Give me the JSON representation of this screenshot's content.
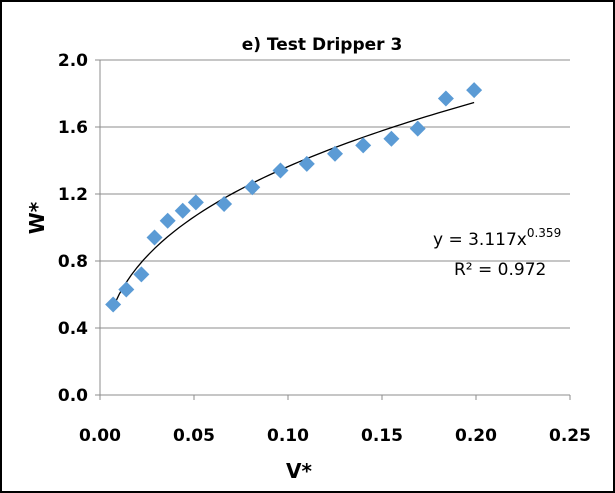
{
  "chart_data": {
    "type": "scatter",
    "title": "e) Test Dripper 3",
    "xlabel": "V*",
    "ylabel": "W*",
    "xlim": [
      0,
      0.25
    ],
    "ylim": [
      0,
      2.0
    ],
    "x_ticks": [
      "0.00",
      "0.05",
      "0.10",
      "0.15",
      "0.20",
      "0.25"
    ],
    "y_ticks": [
      "0.0",
      "0.4",
      "0.8",
      "1.2",
      "1.6",
      "2.0"
    ],
    "grid": "horizontal",
    "legend": "none",
    "marker": "diamond",
    "marker_color": "#5b9bd5",
    "trendline_color": "#000000",
    "series": [
      {
        "points": [
          {
            "x": 0.007,
            "y": 0.54
          },
          {
            "x": 0.014,
            "y": 0.63
          },
          {
            "x": 0.022,
            "y": 0.72
          },
          {
            "x": 0.029,
            "y": 0.94
          },
          {
            "x": 0.036,
            "y": 1.04
          },
          {
            "x": 0.044,
            "y": 1.1
          },
          {
            "x": 0.051,
            "y": 1.15
          },
          {
            "x": 0.066,
            "y": 1.14
          },
          {
            "x": 0.081,
            "y": 1.24
          },
          {
            "x": 0.096,
            "y": 1.34
          },
          {
            "x": 0.11,
            "y": 1.38
          },
          {
            "x": 0.125,
            "y": 1.44
          },
          {
            "x": 0.14,
            "y": 1.49
          },
          {
            "x": 0.155,
            "y": 1.53
          },
          {
            "x": 0.169,
            "y": 1.59
          },
          {
            "x": 0.184,
            "y": 1.77
          },
          {
            "x": 0.199,
            "y": 1.82
          }
        ]
      }
    ],
    "trendline": {
      "type": "power",
      "a": 3.117,
      "b": 0.359,
      "x_range": [
        0.007,
        0.199
      ],
      "equation_prefix": "y = 3.117x",
      "equation_exponent": "0.359",
      "r2_label": "R² = 0.972"
    }
  }
}
